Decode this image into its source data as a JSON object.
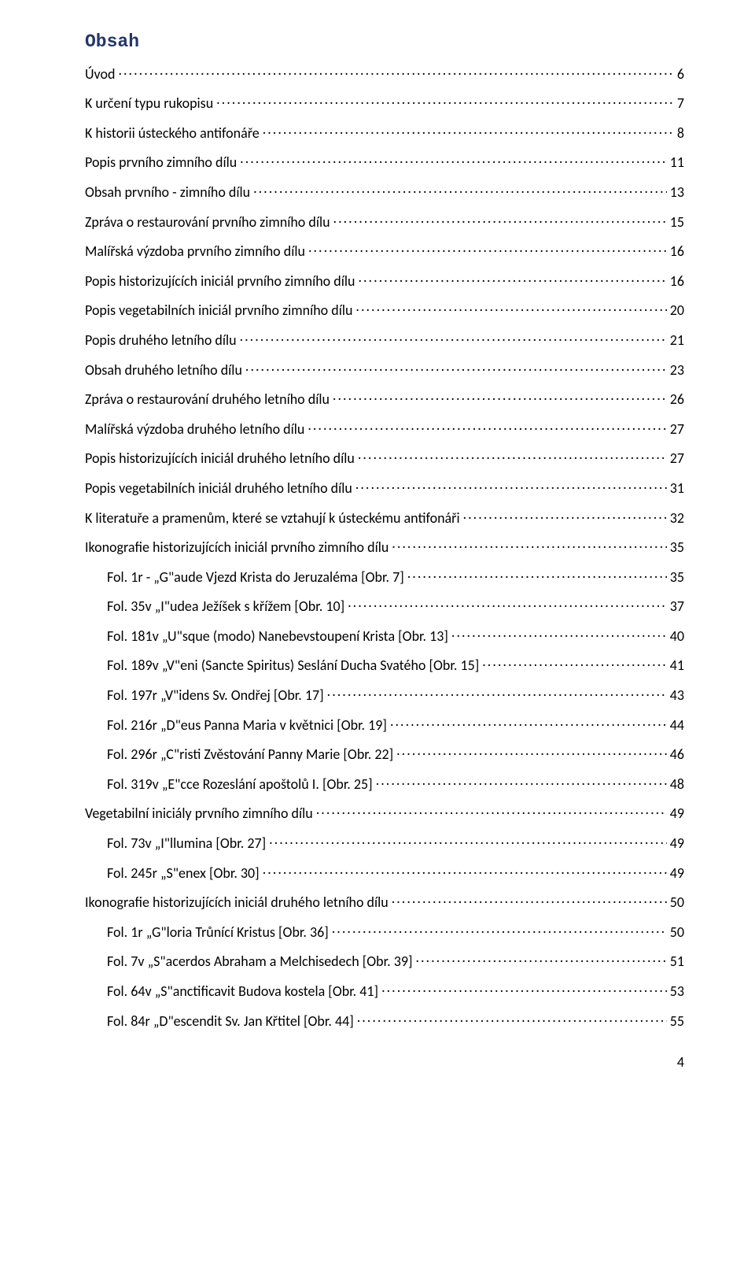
{
  "title": "Obsah",
  "pageNumber": "4",
  "entries": [
    {
      "label": "Úvod",
      "page": "6",
      "indent": 0
    },
    {
      "label": "K určení typu rukopisu",
      "page": "7",
      "indent": 0
    },
    {
      "label": "K historii ústeckého antifonáře",
      "page": "8",
      "indent": 0
    },
    {
      "label": "Popis prvního zimního dílu",
      "page": "11",
      "indent": 0
    },
    {
      "label": "Obsah prvního - zimního dílu",
      "page": "13",
      "indent": 0
    },
    {
      "label": "Zpráva o restaurování prvního zimního dílu",
      "page": "15",
      "indent": 0
    },
    {
      "label": "Malířská výzdoba prvního zimního dílu",
      "page": "16",
      "indent": 0
    },
    {
      "label": "Popis historizujících iniciál prvního zimního dílu",
      "page": "16",
      "indent": 0
    },
    {
      "label": "Popis vegetabilních iniciál prvního zimního dílu",
      "page": "20",
      "indent": 0
    },
    {
      "label": "Popis druhého letního dílu",
      "page": "21",
      "indent": 0
    },
    {
      "label": "Obsah druhého letního dílu",
      "page": "23",
      "indent": 0
    },
    {
      "label": "Zpráva o restaurování druhého letního dílu",
      "page": "26",
      "indent": 0
    },
    {
      "label": "Malířská výzdoba druhého letního dílu",
      "page": "27",
      "indent": 0
    },
    {
      "label": "Popis historizujících iniciál druhého letního dílu",
      "page": "27",
      "indent": 0
    },
    {
      "label": "Popis vegetabilních iniciál druhého letního dílu",
      "page": "31",
      "indent": 0
    },
    {
      "label": "K literatuře a pramenům, které se vztahují k ústeckému antifonáři",
      "page": "32",
      "indent": 0
    },
    {
      "label": "Ikonografie historizujících iniciál prvního zimního dílu",
      "page": "35",
      "indent": 0
    },
    {
      "label": "Fol. 1r - „G\"aude Vjezd Krista do Jeruzaléma [Obr. 7]",
      "page": "35",
      "indent": 1
    },
    {
      "label": "Fol. 35v „I\"udea Ježíšek s křížem [Obr. 10]",
      "page": "37",
      "indent": 1
    },
    {
      "label": "Fol. 181v „U\"sque (modo) Nanebevstoupení Krista [Obr. 13]",
      "page": "40",
      "indent": 1
    },
    {
      "label": "Fol. 189v „V\"eni (Sancte Spiritus) Seslání Ducha Svatého [Obr. 15]",
      "page": "41",
      "indent": 1
    },
    {
      "label": "Fol. 197r „V\"idens Sv. Ondřej [Obr. 17]",
      "page": "43",
      "indent": 1
    },
    {
      "label": "Fol. 216r „D\"eus Panna Maria v květnici [Obr. 19]",
      "page": "44",
      "indent": 1
    },
    {
      "label": "Fol. 296r „C\"risti Zvěstování Panny Marie [Obr. 22]",
      "page": "46",
      "indent": 1
    },
    {
      "label": "Fol. 319v „E\"cce Rozeslání apoštolů I. [Obr. 25]",
      "page": "48",
      "indent": 1
    },
    {
      "label": "Vegetabilní iniciály prvního zimního dílu",
      "page": "49",
      "indent": 0
    },
    {
      "label": "Fol. 73v „I\"llumina [Obr. 27]",
      "page": "49",
      "indent": 1
    },
    {
      "label": "Fol. 245r „S\"enex [Obr. 30]",
      "page": "49",
      "indent": 1
    },
    {
      "label": "Ikonografie historizujících iniciál druhého letního dílu",
      "page": "50",
      "indent": 0
    },
    {
      "label": "Fol. 1r „G\"loria Trůnící Kristus [Obr. 36]",
      "page": "50",
      "indent": 1
    },
    {
      "label": "Fol. 7v „S\"acerdos Abraham a Melchisedech [Obr. 39]",
      "page": "51",
      "indent": 1
    },
    {
      "label": "Fol. 64v „S\"anctificavit Budova kostela [Obr. 41]",
      "page": "53",
      "indent": 1
    },
    {
      "label": "Fol. 84r „D\"escendit Sv. Jan Křtitel [Obr. 44]",
      "page": "55",
      "indent": 1
    }
  ]
}
